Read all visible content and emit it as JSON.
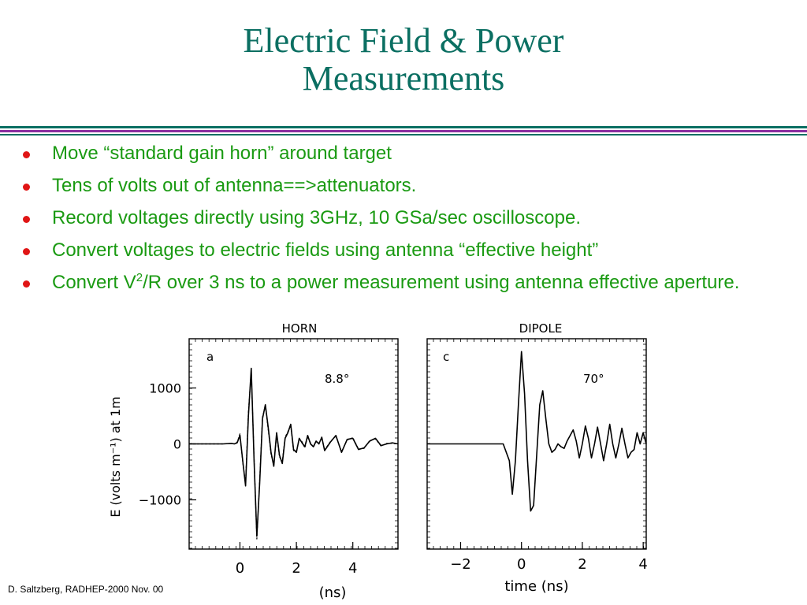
{
  "slide": {
    "title_line1": "Electric Field & Power",
    "title_line2": "Measurements",
    "bullets": [
      "Move “standard gain horn” around target",
      "Tens of volts out of antenna==>attenuators.",
      "Record voltages directly using 3GHz, 10 GSa/sec oscilloscope.",
      "Convert voltages to electric fields using antenna “effective height”",
      {
        "pre": "Convert V",
        "sup": "2",
        "post": "/R over 3 ns to a power measurement using antenna effective aperture."
      }
    ],
    "footer": "D. Saltzberg, RADHEP-2000  Nov. 00",
    "colors": {
      "title": "#0b6f62",
      "bullet_text": "#1a9a12",
      "bullet_dot": "#e01515",
      "rule_teal": "#0b6f62",
      "rule_purple": "#8a2fa0"
    }
  },
  "chart_data": [
    {
      "type": "line",
      "title": "HORN",
      "panel_label": "a",
      "annotation": "8.8°",
      "ylabel": "E (volts m⁻¹) at 1m",
      "yticks": [
        {
          "value": 1000,
          "label": "1000"
        },
        {
          "value": 0,
          "label": "0"
        },
        {
          "value": -1000,
          "label": "−1000"
        }
      ],
      "xticks": [
        {
          "value": 0,
          "label": "0"
        },
        {
          "value": 2,
          "label": "2"
        },
        {
          "value": 4,
          "label": "4"
        }
      ],
      "xunit": "(ns)",
      "xlim": [
        -1.8,
        5.6
      ],
      "ylim": [
        -1880,
        1880
      ],
      "series": [
        {
          "style": "solid",
          "x": [
            -1.8,
            -0.6,
            -0.3,
            -0.2,
            -0.1,
            0.0,
            0.1,
            0.2,
            0.3,
            0.4,
            0.5,
            0.6,
            0.7,
            0.8,
            0.9,
            1.0,
            1.1,
            1.2,
            1.3,
            1.4,
            1.5,
            1.6,
            1.7,
            1.8,
            1.9,
            2.0,
            2.1,
            2.2,
            2.3,
            2.4,
            2.5,
            2.6,
            2.7,
            2.8,
            2.9,
            3.0,
            3.2,
            3.4,
            3.6,
            3.8,
            4.0,
            4.2,
            4.4,
            4.6,
            4.8,
            5.0,
            5.2,
            5.4,
            5.6
          ],
          "values": [
            0,
            0,
            10,
            0,
            20,
            150,
            -300,
            -750,
            500,
            1350,
            -300,
            -1650,
            -700,
            450,
            700,
            300,
            -150,
            -400,
            200,
            -200,
            -350,
            100,
            200,
            350,
            -100,
            -150,
            100,
            20,
            -50,
            150,
            0,
            -50,
            50,
            0,
            120,
            -120,
            30,
            150,
            -150,
            80,
            100,
            -100,
            -70,
            50,
            100,
            -30,
            0,
            20,
            0
          ]
        },
        {
          "style": "dashed",
          "x": [
            -1.8,
            -0.6,
            -0.3,
            -0.2,
            -0.1,
            0.0,
            0.1,
            0.2,
            0.3,
            0.4,
            0.5,
            0.6,
            0.7,
            0.8,
            0.9,
            1.0,
            1.1,
            1.2,
            1.3,
            1.4,
            1.5,
            1.6,
            1.7,
            1.8,
            1.9,
            2.0,
            2.1,
            2.2,
            2.3,
            2.4,
            2.5,
            2.6,
            2.7,
            2.8,
            2.9,
            3.0,
            3.2,
            3.4,
            3.6,
            3.8,
            4.0,
            4.2,
            4.4,
            4.6,
            4.8,
            5.0,
            5.2,
            5.4,
            5.6
          ],
          "values": [
            0,
            0,
            10,
            0,
            30,
            180,
            -330,
            -700,
            560,
            1300,
            -250,
            -1700,
            -650,
            480,
            680,
            260,
            -180,
            -380,
            170,
            -230,
            -320,
            120,
            220,
            330,
            -120,
            -130,
            80,
            40,
            -70,
            130,
            20,
            -60,
            40,
            10,
            110,
            -110,
            40,
            140,
            -140,
            70,
            110,
            -90,
            -80,
            60,
            90,
            -40,
            10,
            10,
            0
          ]
        }
      ]
    },
    {
      "type": "line",
      "title": "DIPOLE",
      "panel_label": "c",
      "annotation": "70°",
      "xlabel": "time (ns)",
      "xticks": [
        {
          "value": -2,
          "label": "−2"
        },
        {
          "value": 0,
          "label": "0"
        },
        {
          "value": 2,
          "label": "2"
        },
        {
          "value": 4,
          "label": "4"
        }
      ],
      "xlim": [
        -3.1,
        4.1
      ],
      "ylim": [
        -1880,
        1880
      ],
      "series": [
        {
          "style": "solid",
          "x": [
            -3.1,
            -0.6,
            -0.4,
            -0.3,
            -0.2,
            -0.1,
            0.0,
            0.1,
            0.2,
            0.3,
            0.4,
            0.5,
            0.6,
            0.7,
            0.8,
            0.9,
            1.0,
            1.1,
            1.2,
            1.3,
            1.4,
            1.5,
            1.6,
            1.7,
            1.8,
            1.9,
            2.0,
            2.1,
            2.2,
            2.3,
            2.4,
            2.5,
            2.6,
            2.7,
            2.8,
            2.9,
            3.0,
            3.1,
            3.2,
            3.3,
            3.4,
            3.5,
            3.6,
            3.7,
            3.8,
            3.9,
            4.0,
            4.1
          ],
          "values": [
            0,
            0,
            -300,
            -900,
            -300,
            700,
            1650,
            900,
            -300,
            -1200,
            -1100,
            -200,
            700,
            950,
            450,
            0,
            -150,
            -100,
            0,
            -50,
            -80,
            50,
            150,
            250,
            50,
            -250,
            0,
            320,
            100,
            -250,
            0,
            300,
            0,
            -300,
            0,
            350,
            0,
            -250,
            0,
            280,
            0,
            -250,
            -150,
            -100,
            200,
            0,
            200,
            0
          ]
        }
      ]
    }
  ]
}
